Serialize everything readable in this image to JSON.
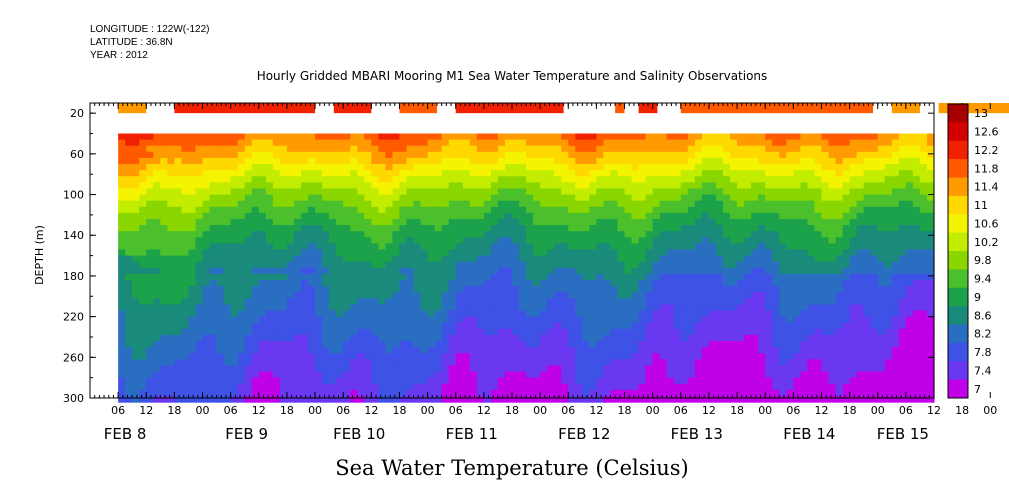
{
  "header": {
    "longitude": "LONGITUDE : 122W(-122)",
    "latitude": "LATITUDE : 36.8N",
    "year": "YEAR : 2012"
  },
  "chart_data": {
    "type": "heatmap",
    "title": "Hourly Gridded MBARI Mooring M1 Sea Water Temperature and Salinity Observations",
    "xlabel": "Sea Water Temperature (Celsius)",
    "ylabel": "DEPTH (m)",
    "x_range_hours_from_feb8_00": [
      0,
      174
    ],
    "y_range_m": [
      300,
      0
    ],
    "hour_ticks": [
      "06",
      "12",
      "18",
      "00",
      "06",
      "12",
      "18",
      "00",
      "06",
      "12",
      "18",
      "00",
      "06",
      "12",
      "18",
      "00",
      "06",
      "12",
      "18",
      "00",
      "06",
      "12",
      "18",
      "00",
      "06",
      "12",
      "18",
      "00",
      "06",
      "12",
      "18",
      "00"
    ],
    "date_labels": [
      "FEB 8",
      "FEB 9",
      "FEB 10",
      "FEB 11",
      "FEB 12",
      "FEB 13",
      "FEB 14",
      "FEB 15"
    ],
    "y_ticks": [
      20,
      60,
      100,
      140,
      180,
      220,
      260,
      300
    ],
    "colorbar_levels": [
      13,
      12.6,
      12.2,
      11.8,
      11.4,
      11,
      10.6,
      10.2,
      9.8,
      9.4,
      9,
      8.6,
      8.2,
      7.8,
      7.4,
      7
    ],
    "colors": {
      "13": "#a80000",
      "12.6": "#d20000",
      "12.2": "#f02000",
      "11.8": "#ff5a00",
      "11.4": "#ff9a00",
      "11": "#ffd800",
      "10.6": "#f4f400",
      "10.2": "#c2ec00",
      "9.8": "#8ad600",
      "9.4": "#4cc02c",
      "9": "#1ca24a",
      "8.6": "#1a8a7a",
      "8.2": "#2a6ec2",
      "7.8": "#3e52e6",
      "7.4": "#6a38f0",
      "7": "#c000e8"
    },
    "surface_segments": [
      {
        "start": 0,
        "end": 6,
        "temp": 11.6
      },
      {
        "start": 12,
        "end": 42,
        "temp": 12.3
      },
      {
        "start": 46,
        "end": 54,
        "temp": 12.4
      },
      {
        "start": 60,
        "end": 68,
        "temp": 12.1
      },
      {
        "start": 72,
        "end": 95,
        "temp": 12.2
      },
      {
        "start": 106,
        "end": 108,
        "temp": 12.1
      },
      {
        "start": 111,
        "end": 115,
        "temp": 12.2
      },
      {
        "start": 120,
        "end": 161,
        "temp": 11.8
      },
      {
        "start": 165,
        "end": 171,
        "temp": 11.6
      },
      {
        "start": 175,
        "end": 198,
        "temp": 11.6
      }
    ],
    "profile_depths_m": [
      40,
      60,
      80,
      100,
      120,
      140,
      160,
      180,
      200,
      220,
      240,
      260,
      280,
      300
    ],
    "profile_temps_c": [
      11.9,
      11.3,
      10.6,
      10.0,
      9.5,
      9.1,
      8.8,
      8.5,
      8.3,
      8.1,
      7.9,
      7.7,
      7.5,
      7.3
    ]
  }
}
